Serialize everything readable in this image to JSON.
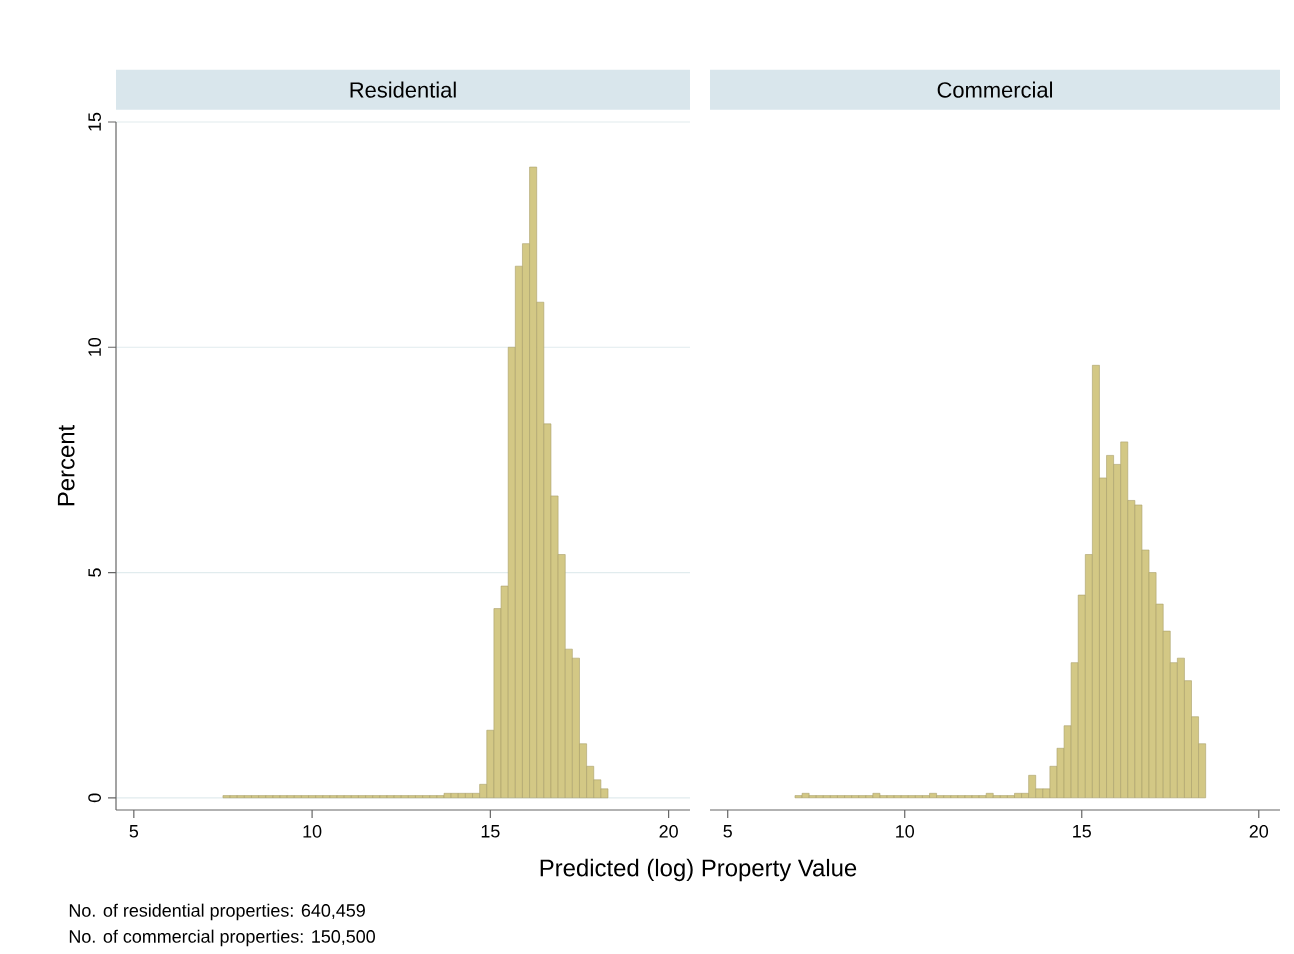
{
  "chart_data": [
    {
      "type": "histogram",
      "title": "Residential",
      "ylabel": "Percent",
      "xlabel": "Predicted (log) Property Value",
      "annotations": [
        "No. of residential properties: 640,459",
        "No. of commercial properties: 150,500"
      ],
      "bins": [
        7.5,
        7.7,
        7.9,
        8.1,
        8.3,
        8.5,
        8.7,
        8.9,
        9.1,
        9.3,
        9.5,
        9.7,
        9.9,
        10.1,
        10.3,
        10.5,
        10.7,
        10.9,
        11.1,
        11.3,
        11.5,
        11.7,
        11.9,
        12.1,
        12.3,
        12.5,
        12.7,
        12.9,
        13.1,
        13.3,
        13.5,
        13.7,
        13.9,
        14.1,
        14.3,
        14.5,
        14.7,
        14.9,
        15.1,
        15.3,
        15.5,
        15.7,
        15.9,
        16.1,
        16.3,
        16.5,
        16.7,
        16.9,
        17.1,
        17.3,
        17.5,
        17.7,
        17.9,
        18.1,
        18.3
      ],
      "values": [
        0.05,
        0.05,
        0.05,
        0.05,
        0.05,
        0.05,
        0.05,
        0.05,
        0.05,
        0.05,
        0.05,
        0.05,
        0.05,
        0.05,
        0.05,
        0.05,
        0.05,
        0.05,
        0.05,
        0.05,
        0.05,
        0.05,
        0.05,
        0.05,
        0.05,
        0.05,
        0.05,
        0.05,
        0.05,
        0.05,
        0.05,
        0.1,
        0.1,
        0.1,
        0.1,
        0.1,
        0.3,
        1.5,
        4.2,
        4.7,
        10,
        11.8,
        12.3,
        14,
        11,
        8.3,
        6.7,
        5.4,
        3.3,
        3.1,
        1.2,
        0.7,
        0.4,
        0.2
      ],
      "color": "#d3c885",
      "xlim": [
        4.5,
        20.6
      ],
      "ylim": [
        -0.27,
        15
      ],
      "xticks": [
        5,
        10,
        15,
        20
      ],
      "yticks": [
        0,
        5,
        10,
        15
      ],
      "grid": "y"
    },
    {
      "type": "histogram",
      "title": "Commercial",
      "bins": [
        6.9,
        7.1,
        7.3,
        7.5,
        7.7,
        7.9,
        8.1,
        8.3,
        8.5,
        8.7,
        8.9,
        9.1,
        9.3,
        9.5,
        9.7,
        9.9,
        10.1,
        10.3,
        10.5,
        10.7,
        10.9,
        11.1,
        11.3,
        11.5,
        11.7,
        11.9,
        12.1,
        12.3,
        12.5,
        12.7,
        12.9,
        13.1,
        13.3,
        13.5,
        13.7,
        13.9,
        14.1,
        14.3,
        14.5,
        14.7,
        14.9,
        15.1,
        15.3,
        15.5,
        15.7,
        15.9,
        16.1,
        16.3,
        16.5,
        16.7,
        16.9,
        17.1,
        17.3,
        17.5,
        17.7,
        17.9,
        18.1,
        18.3,
        18.5
      ],
      "values": [
        0.05,
        0.1,
        0.05,
        0.05,
        0.05,
        0.05,
        0.05,
        0.05,
        0.05,
        0.05,
        0.05,
        0.1,
        0.05,
        0.05,
        0.05,
        0.05,
        0.05,
        0.05,
        0.05,
        0.1,
        0.05,
        0.05,
        0.05,
        0.05,
        0.05,
        0.05,
        0.05,
        0.1,
        0.05,
        0.05,
        0.05,
        0.1,
        0.1,
        0.5,
        0.2,
        0.2,
        0.7,
        1.1,
        1.6,
        3,
        4.5,
        5.4,
        9.6,
        7.1,
        7.6,
        7.4,
        7.9,
        6.6,
        6.5,
        5.5,
        5,
        4.3,
        3.7,
        3,
        3.1,
        2.6,
        1.8,
        1.2
      ],
      "color": "#d3c885",
      "xlim": [
        4.5,
        20.6
      ],
      "ylim": [
        -0.27,
        15
      ],
      "xticks": [
        5,
        10,
        15,
        20
      ],
      "yticks": [
        0,
        5,
        10,
        15
      ],
      "grid": "y",
      "tick_labels": "x"
    }
  ]
}
